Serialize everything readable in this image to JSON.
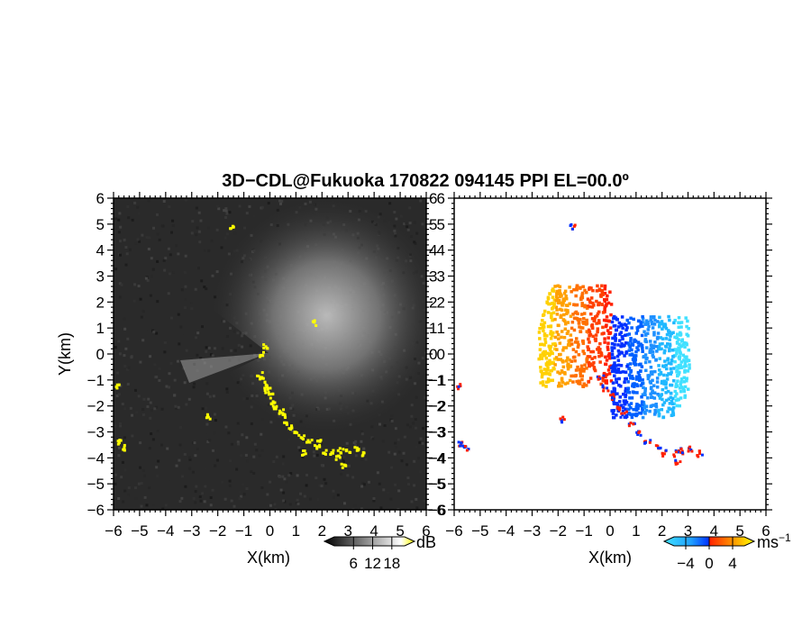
{
  "title": "3D−CDL@Fukuoka 170822 094145 PPI EL=00.0º",
  "chart_data": [
    {
      "type": "heatmap",
      "panel": "left",
      "quantity": "reflectivity (dB)",
      "xlabel": "X(km)",
      "ylabel": "Y(km)",
      "xlim": [
        -6,
        6
      ],
      "ylim": [
        -6,
        6
      ],
      "xticks": [
        -6,
        -5,
        -4,
        -3,
        -2,
        -1,
        0,
        1,
        2,
        3,
        4,
        5,
        6
      ],
      "yticks": [
        -6,
        -5,
        -4,
        -3,
        -2,
        -1,
        0,
        1,
        2,
        3,
        4,
        5,
        6
      ],
      "grid": false,
      "colorbar": {
        "unit": "dB",
        "ticks": [
          6,
          12,
          18
        ],
        "range": [
          0,
          22
        ],
        "colors": [
          "#000000",
          "#ffffff",
          "#ffff00"
        ]
      },
      "background_color": "#2a2a2a",
      "highlight_color": "#ffff00",
      "strong_echo_points_km": [
        [
          -0.4,
          -0.8
        ],
        [
          -0.3,
          -1.0
        ],
        [
          -0.2,
          -1.2
        ],
        [
          -0.1,
          -1.4
        ],
        [
          0.0,
          -1.6
        ],
        [
          0.1,
          -1.8
        ],
        [
          0.2,
          -2.0
        ],
        [
          0.4,
          -2.2
        ],
        [
          0.5,
          -2.4
        ],
        [
          0.6,
          -2.6
        ],
        [
          0.8,
          -2.8
        ],
        [
          1.0,
          -3.0
        ],
        [
          1.2,
          -3.2
        ],
        [
          1.5,
          -3.4
        ],
        [
          1.8,
          -3.6
        ],
        [
          2.1,
          -3.8
        ],
        [
          2.4,
          -3.8
        ],
        [
          2.7,
          -3.7
        ],
        [
          3.0,
          -3.7
        ],
        [
          3.3,
          -3.6
        ],
        [
          3.6,
          -3.8
        ],
        [
          1.9,
          -3.3
        ],
        [
          1.3,
          -3.8
        ],
        [
          2.6,
          -4.0
        ],
        [
          2.8,
          -4.3
        ],
        [
          -5.8,
          -3.4
        ],
        [
          -5.6,
          -3.6
        ],
        [
          -5.9,
          -1.2
        ],
        [
          -1.5,
          4.9
        ],
        [
          1.7,
          1.2
        ],
        [
          -2.4,
          -2.4
        ],
        [
          -0.3,
          0.0
        ],
        [
          -0.2,
          0.3
        ]
      ]
    },
    {
      "type": "heatmap",
      "panel": "right",
      "quantity": "radial velocity (ms−1)",
      "xlabel": "X(km)",
      "xlim": [
        -6,
        6
      ],
      "ylim": [
        -6,
        6
      ],
      "xticks": [
        -6,
        -5,
        -4,
        -3,
        -2,
        -1,
        0,
        1,
        2,
        3,
        4,
        5,
        6
      ],
      "yticks": [
        -6,
        -5,
        -4,
        -3,
        -2,
        -1,
        0,
        1,
        2,
        3,
        4,
        5,
        6
      ],
      "grid": false,
      "colorbar": {
        "unit": "ms",
        "unit_exp": "−1",
        "ticks": [
          -4,
          0,
          4
        ],
        "range": [
          -6,
          6
        ],
        "colors": [
          "#40e0ff",
          "#0030ff",
          "#ff2000",
          "#ffff00"
        ]
      },
      "positive_velocity_region_km": {
        "x": [
          -2.8,
          0.0
        ],
        "y": [
          -1.2,
          2.7
        ]
      },
      "negative_velocity_region_km": {
        "x": [
          0.0,
          3.0
        ],
        "y": [
          -2.4,
          1.5
        ]
      },
      "edge_echoes_km": [
        [
          -0.4,
          -0.9
        ],
        [
          -0.2,
          -1.3
        ],
        [
          0.0,
          -1.6
        ],
        [
          0.3,
          -2.0
        ],
        [
          0.5,
          -2.3
        ],
        [
          0.8,
          -2.7
        ],
        [
          1.1,
          -3.0
        ],
        [
          1.4,
          -3.3
        ],
        [
          1.8,
          -3.6
        ],
        [
          2.1,
          -3.8
        ],
        [
          2.5,
          -3.8
        ],
        [
          2.8,
          -3.7
        ],
        [
          3.1,
          -3.6
        ],
        [
          3.4,
          -3.8
        ],
        [
          2.6,
          -4.1
        ],
        [
          -5.8,
          -3.4
        ],
        [
          -5.6,
          -3.6
        ],
        [
          -5.9,
          -1.2
        ],
        [
          -1.5,
          4.9
        ],
        [
          -1.9,
          -2.5
        ]
      ]
    }
  ]
}
